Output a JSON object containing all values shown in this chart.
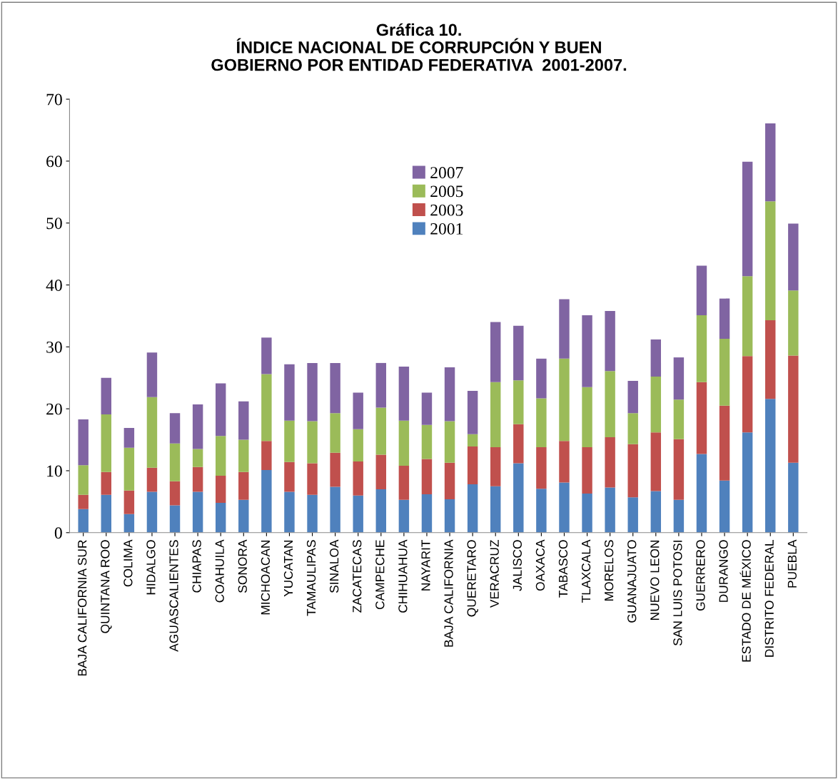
{
  "chart_data": {
    "type": "bar",
    "stacked": true,
    "title": "Gráfica 10.\nÍNDICE NACIONAL DE CORRUPCIÓN Y BUEN\nGOBIERNO POR ENTIDAD FEDERATIVA  2001-2007.",
    "categories": [
      "BAJA CALIFORNIA SUR",
      "QUINTANA ROO",
      "COLIMA",
      "HIDALGO",
      "AGUASCALIENTES",
      "CHIAPAS",
      "COAHUILA",
      "SONORA",
      "MICHOACAN",
      "YUCATAN",
      "TAMAULIPAS",
      "SINALOA",
      "ZACATECAS",
      "CAMPECHE",
      "CHIHUAHUA",
      "NAYARIT",
      "BAJA CALIFORNIA",
      "QUERETARO",
      "VERACRUZ",
      "JALISCO",
      "OAXACA",
      "TABASCO",
      "TLAXCALA",
      "MORELOS",
      "GUANAJUATO",
      "NUEVO LEON",
      "SAN LUIS POTOSI",
      "GUERRERO",
      "DURANGO",
      "ESTADO DE MÉXICO",
      "DISTRITO FEDERAL",
      "PUEBLA"
    ],
    "series": [
      {
        "name": "2001",
        "color": "#4f81bd",
        "values": [
          3.8,
          6.1,
          3.0,
          6.6,
          4.4,
          6.6,
          4.8,
          5.3,
          10.1,
          6.6,
          6.1,
          7.4,
          6.0,
          7.0,
          5.3,
          6.2,
          5.4,
          7.8,
          7.5,
          11.2,
          7.1,
          8.1,
          6.3,
          7.3,
          5.7,
          6.7,
          5.3,
          12.7,
          8.4,
          16.2,
          21.6,
          11.3
        ]
      },
      {
        "name": "2003",
        "color": "#c0504d",
        "values": [
          2.3,
          3.7,
          3.8,
          3.9,
          3.9,
          4.0,
          4.4,
          4.5,
          4.7,
          4.8,
          5.1,
          5.5,
          5.5,
          5.6,
          5.5,
          5.7,
          5.9,
          6.1,
          6.3,
          6.3,
          6.7,
          6.7,
          7.5,
          8.1,
          8.6,
          9.5,
          9.8,
          11.6,
          12.1,
          12.3,
          12.7,
          17.3
        ]
      },
      {
        "name": "2005",
        "color": "#9bbb59",
        "values": [
          4.8,
          9.3,
          6.9,
          11.4,
          6.1,
          2.9,
          6.4,
          5.2,
          10.8,
          6.7,
          6.8,
          6.4,
          5.2,
          7.6,
          7.3,
          5.5,
          6.7,
          2.0,
          10.5,
          7.1,
          7.9,
          13.3,
          9.7,
          10.7,
          5.0,
          9.0,
          6.4,
          10.8,
          10.8,
          12.9,
          19.2,
          10.5
        ]
      },
      {
        "name": "2007",
        "color": "#8064a2",
        "values": [
          7.4,
          5.9,
          3.2,
          7.2,
          4.9,
          7.2,
          8.5,
          6.2,
          5.9,
          9.1,
          9.4,
          8.1,
          5.9,
          7.2,
          8.7,
          5.2,
          8.7,
          7.0,
          9.7,
          8.8,
          6.4,
          9.6,
          11.6,
          9.7,
          5.2,
          6.0,
          6.8,
          8.0,
          6.5,
          18.5,
          12.6,
          10.8
        ]
      }
    ],
    "ylim": [
      0,
      70
    ],
    "yticks": [
      0,
      10,
      20,
      30,
      40,
      50,
      60,
      70
    ],
    "grid": false,
    "legend": "top"
  }
}
